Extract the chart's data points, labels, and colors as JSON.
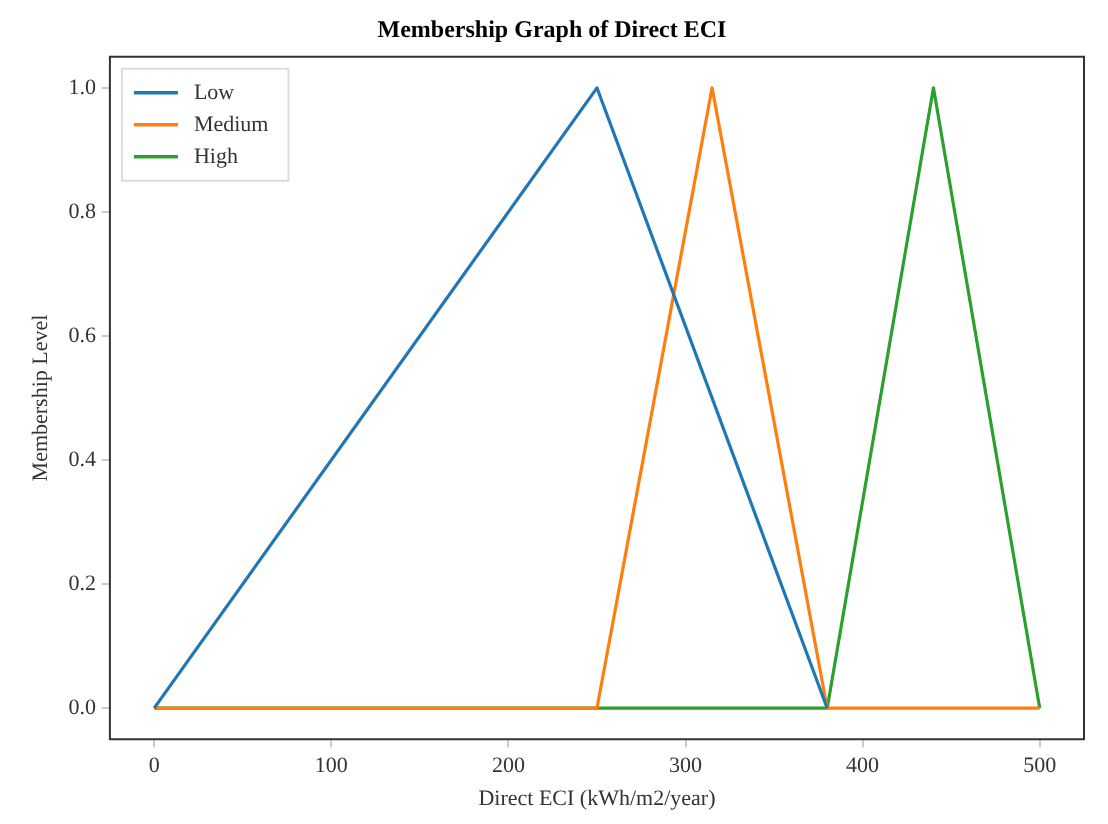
{
  "chart_data": {
    "type": "line",
    "title": "Membership Graph of Direct ECI",
    "xlabel": "Direct ECI (kWh/m2/year)",
    "ylabel": "Membership Level",
    "series": [
      {
        "name": "Low",
        "color": "#1f77b4",
        "x": [
          0,
          250,
          380
        ],
        "values": [
          0,
          1,
          0
        ]
      },
      {
        "name": "Medium",
        "color": "#ff7f0e",
        "x": [
          0,
          250,
          315,
          380,
          500
        ],
        "values": [
          0,
          0,
          1,
          0,
          0
        ]
      },
      {
        "name": "High",
        "color": "#2ca02c",
        "x": [
          0,
          380,
          440,
          500
        ],
        "values": [
          0,
          0,
          1,
          0
        ]
      }
    ],
    "xlim": [
      -25,
      525
    ],
    "xticks": [
      0,
      100,
      200,
      300,
      400,
      500
    ],
    "ylim": [
      -0.05,
      1.05
    ],
    "yticks": [
      {
        "value": 0,
        "label": "0.0"
      },
      {
        "value": 0.2,
        "label": "0.2"
      },
      {
        "value": 0.4,
        "label": "0.4"
      },
      {
        "value": 0.6,
        "label": "0.6"
      },
      {
        "value": 0.8,
        "label": "0.8"
      },
      {
        "value": 1,
        "label": "1.0"
      }
    ],
    "grid": false,
    "legend": "top left",
    "marker": "none",
    "line_style": "solid"
  }
}
